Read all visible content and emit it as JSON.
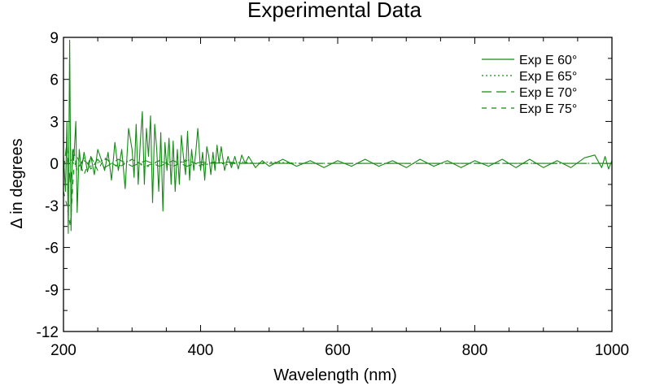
{
  "chart_data": {
    "type": "line",
    "title": "Experimental Data",
    "xlabel": "Wavelength (nm)",
    "ylabel": "Δ in degrees",
    "xlim": [
      200,
      1000
    ],
    "ylim": [
      -12,
      9
    ],
    "xticks": [
      200,
      400,
      600,
      800,
      1000
    ],
    "yticks": [
      9,
      6,
      3,
      0,
      -3,
      -6,
      -9,
      -12
    ],
    "grid": false,
    "legend_position": "top-right",
    "line_color": "#138a13",
    "series": [
      {
        "name": "Exp E 60°",
        "dash": "solid",
        "x": [
          200,
          203,
          205,
          207,
          209,
          211,
          213,
          215,
          218,
          220,
          223,
          226,
          230,
          235,
          240,
          245,
          250,
          255,
          260,
          265,
          270,
          275,
          280,
          285,
          290,
          295,
          300,
          303,
          306,
          309,
          312,
          315,
          318,
          321,
          324,
          327,
          330,
          333,
          336,
          339,
          342,
          345,
          348,
          351,
          354,
          357,
          360,
          363,
          366,
          369,
          372,
          375,
          378,
          381,
          384,
          387,
          390,
          393,
          396,
          400,
          403,
          406,
          409,
          412,
          415,
          418,
          421,
          424,
          427,
          430,
          435,
          440,
          445,
          450,
          455,
          460,
          465,
          470,
          480,
          490,
          500,
          520,
          540,
          560,
          580,
          600,
          620,
          640,
          660,
          680,
          700,
          720,
          740,
          760,
          780,
          800,
          820,
          840,
          860,
          880,
          900,
          920,
          940,
          960,
          975,
          985,
          990,
          995,
          1000
        ],
        "y": [
          0.5,
          -2.0,
          3.0,
          -5.0,
          8.8,
          -4.8,
          1.0,
          0.2,
          3.0,
          -3.5,
          1.0,
          -0.5,
          0.8,
          -0.6,
          0.5,
          -0.8,
          1.0,
          0.3,
          -0.5,
          0.8,
          -1.2,
          1.5,
          -0.5,
          1.0,
          -1.8,
          2.5,
          1.0,
          -1.0,
          2.8,
          -1.5,
          1.5,
          3.7,
          -1.5,
          2.5,
          0.5,
          3.4,
          -2.8,
          2.8,
          1.0,
          -2.0,
          2.2,
          -3.4,
          1.5,
          -0.5,
          1.8,
          -1.5,
          1.6,
          -2.0,
          1.0,
          -1.5,
          2.0,
          0.5,
          -0.8,
          2.3,
          -1.2,
          1.0,
          -0.5,
          0.8,
          2.5,
          -0.5,
          0.8,
          -1.2,
          1.2,
          0.5,
          -0.8,
          0.8,
          -0.5,
          1.3,
          0.0,
          1.2,
          -0.5,
          0.5,
          -0.3,
          0.5,
          -0.4,
          0.6,
          0.0,
          0.5,
          -0.3,
          0.2,
          -0.2,
          0.3,
          -0.2,
          0.2,
          -0.3,
          0.2,
          -0.2,
          0.3,
          -0.2,
          0.2,
          -0.3,
          0.3,
          -0.2,
          0.2,
          -0.3,
          0.2,
          -0.2,
          0.3,
          -0.3,
          0.3,
          -0.3,
          0.2,
          -0.3,
          0.4,
          0.6,
          -0.3,
          0.5,
          -0.4,
          0.2
        ]
      },
      {
        "name": "Exp E 65°",
        "dash": "dotted",
        "x": [
          200,
          210,
          220,
          230,
          240,
          260,
          280,
          300,
          320,
          340,
          360,
          380,
          400,
          420,
          440,
          460,
          480,
          500,
          550,
          600,
          700,
          800,
          900,
          1000
        ],
        "y": [
          0.0,
          0.3,
          -0.3,
          0.2,
          -0.2,
          0.3,
          -0.2,
          0.3,
          -0.3,
          0.2,
          -0.2,
          0.3,
          -0.2,
          0.1,
          -0.1,
          0.1,
          0.0,
          0.1,
          0.0,
          0.0,
          0.0,
          0.0,
          0.0,
          0.0
        ]
      },
      {
        "name": "Exp E 70°",
        "dash": "long-dash",
        "x": [
          200,
          205,
          210,
          215,
          220,
          230,
          240,
          250,
          260,
          280,
          300,
          320,
          340,
          360,
          380,
          400,
          420,
          440,
          460,
          480,
          500,
          600,
          700,
          800,
          900,
          1000
        ],
        "y": [
          -0.5,
          1.5,
          -1.5,
          1.0,
          -0.5,
          0.4,
          -0.4,
          0.3,
          -0.3,
          0.3,
          -0.2,
          0.2,
          -0.2,
          0.2,
          -0.2,
          0.1,
          0.0,
          0.1,
          0.0,
          0.0,
          0.0,
          0.0,
          0.0,
          0.0,
          0.0,
          0.0
        ]
      },
      {
        "name": "Exp E 75°",
        "dash": "short-dash",
        "x": [
          200,
          205,
          210,
          215,
          220,
          230,
          240,
          250,
          260,
          280,
          300,
          320,
          340,
          360,
          380,
          400,
          420,
          440,
          460,
          480,
          500,
          600,
          700,
          800,
          900,
          1000
        ],
        "y": [
          -2.0,
          -3.0,
          -4.5,
          -0.5,
          0.5,
          -0.8,
          0.5,
          -0.5,
          0.4,
          -0.3,
          0.3,
          -0.2,
          0.2,
          -0.2,
          0.2,
          -0.1,
          0.1,
          0.0,
          0.0,
          0.0,
          0.0,
          0.0,
          0.0,
          0.0,
          0.0,
          0.0
        ]
      }
    ]
  }
}
